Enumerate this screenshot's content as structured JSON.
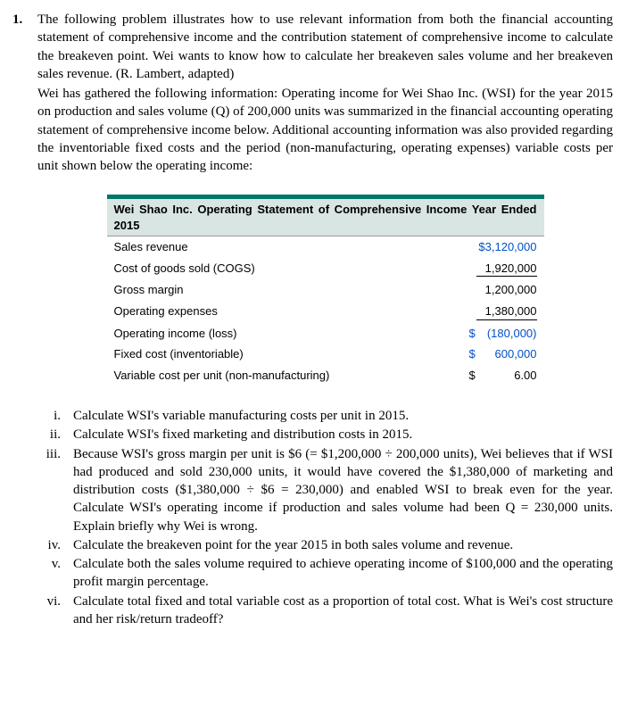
{
  "problem": {
    "number": "1.",
    "para1": "The following problem illustrates how to use relevant information from both the financial accounting statement of comprehensive income and the contribution statement of comprehensive income to calculate the breakeven point. Wei wants to know how to calculate her breakeven sales volume and her breakeven sales revenue. (R. Lambert, adapted)",
    "para2": "Wei has gathered the following information: Operating income for Wei Shao Inc. (WSI) for the year 2015 on production and sales volume (Q) of 200,000 units was summarized in the financial accounting operating statement of comprehensive income below. Additional accounting information was also provided regarding the inventoriable fixed costs and the period (non-manufacturing, operating expenses) variable costs per unit shown below the operating income:"
  },
  "table": {
    "title": "Wei Shao Inc. Operating Statement of Comprehensive Income Year Ended 2015",
    "rows": [
      {
        "label": "Sales revenue",
        "value": "$3,120,000",
        "blue": true,
        "under": false,
        "dollar": false
      },
      {
        "label": "Cost of goods sold (COGS)",
        "value": "1,920,000",
        "blue": false,
        "under": true,
        "dollar": false
      },
      {
        "label": "Gross margin",
        "value": "1,200,000",
        "blue": false,
        "under": false,
        "dollar": false
      },
      {
        "label": "Operating expenses",
        "value": "1,380,000",
        "blue": false,
        "under": true,
        "dollar": false
      },
      {
        "label": "Operating income (loss)",
        "value": "(180,000)",
        "blue": true,
        "under": false,
        "dollar": "$"
      },
      {
        "label": "Fixed cost (inventoriable)",
        "value": "600,000",
        "blue": true,
        "under": false,
        "dollar": "$"
      },
      {
        "label": "Variable cost per unit (non-manufacturing)",
        "value": "6.00",
        "blue": false,
        "under": false,
        "dollar": "$"
      }
    ]
  },
  "subparts": [
    {
      "n": "i.",
      "text": "Calculate WSI's variable manufacturing costs per unit in 2015."
    },
    {
      "n": "ii.",
      "text": "Calculate WSI's fixed marketing and distribution costs in 2015."
    },
    {
      "n": "iii.",
      "text": "Because WSI's gross margin per unit is $6 (= $1,200,000 ÷ 200,000 units), Wei believes that if WSI had produced and sold 230,000 units, it would have covered the $1,380,000 of marketing and distribution costs ($1,380,000 ÷ $6 = 230,000) and enabled WSI to break even for the year. Calculate WSI's operating income if production and sales volume had been Q = 230,000 units. Explain briefly why Wei is wrong."
    },
    {
      "n": "iv.",
      "text": "Calculate the breakeven point for the year 2015 in both sales volume and revenue."
    },
    {
      "n": "v.",
      "text": "Calculate both the sales volume required to achieve operating income of $100,000 and the operating profit margin percentage."
    },
    {
      "n": "vi.",
      "text": "Calculate total fixed and total variable cost as a proportion of total cost. What is Wei's cost structure and her risk/return tradeoff?"
    }
  ]
}
